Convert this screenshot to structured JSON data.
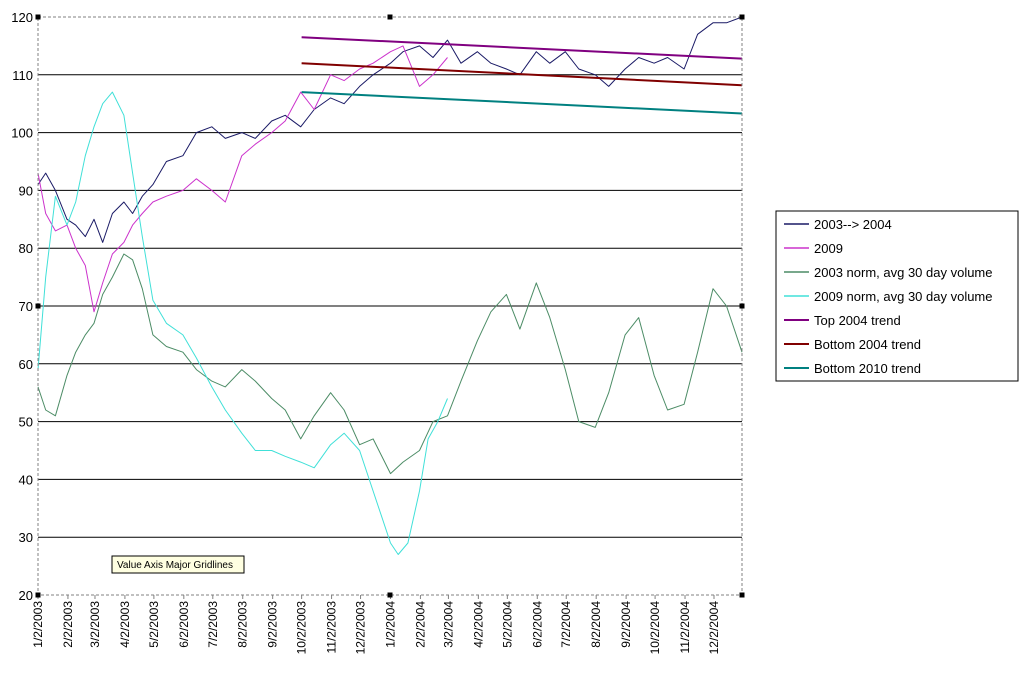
{
  "chart_data": {
    "type": "line",
    "title": "",
    "xlabel": "",
    "ylabel": "",
    "ylim": [
      20,
      120
    ],
    "xlim": [
      "2003-01-02",
      "2004-12-31"
    ],
    "y_ticks": [
      "20",
      "30",
      "40",
      "50",
      "60",
      "70",
      "80",
      "90",
      "100",
      "110",
      "120"
    ],
    "x_ticks": [
      "1/2/2003",
      "2/2/2003",
      "3/2/2003",
      "4/2/2003",
      "5/2/2003",
      "6/2/2003",
      "7/2/2003",
      "8/2/2003",
      "9/2/2003",
      "10/2/2003",
      "11/2/2003",
      "12/2/2003",
      "1/2/2004",
      "2/2/2004",
      "3/2/2004",
      "4/2/2004",
      "5/2/2004",
      "6/2/2004",
      "7/2/2004",
      "8/2/2004",
      "9/2/2004",
      "10/2/2004",
      "11/2/2004",
      "12/2/2004"
    ],
    "grid": "horizontal major gridlines",
    "legend_position": "right",
    "tooltip": "Value Axis Major Gridlines",
    "series": [
      {
        "name": "2003--> 2004",
        "color": "#1a1a66",
        "x": [
          "2003-01-02",
          "2003-01-10",
          "2003-01-20",
          "2003-02-01",
          "2003-02-10",
          "2003-02-20",
          "2003-03-01",
          "2003-03-10",
          "2003-03-20",
          "2003-04-01",
          "2003-04-10",
          "2003-04-20",
          "2003-05-01",
          "2003-05-15",
          "2003-06-01",
          "2003-06-15",
          "2003-07-01",
          "2003-07-15",
          "2003-08-01",
          "2003-08-15",
          "2003-09-01",
          "2003-09-15",
          "2003-10-01",
          "2003-10-15",
          "2003-11-01",
          "2003-11-15",
          "2003-12-01",
          "2003-12-15",
          "2004-01-02",
          "2004-01-15",
          "2004-02-01",
          "2004-02-15",
          "2004-03-01",
          "2004-03-15",
          "2004-04-01",
          "2004-04-15",
          "2004-05-01",
          "2004-05-15",
          "2004-06-01",
          "2004-06-15",
          "2004-07-01",
          "2004-07-15",
          "2004-08-01",
          "2004-08-15",
          "2004-09-01",
          "2004-09-15",
          "2004-10-01",
          "2004-10-15",
          "2004-11-01",
          "2004-11-15",
          "2004-12-01",
          "2004-12-15",
          "2004-12-31"
        ],
        "values": [
          91,
          93,
          90,
          85,
          84,
          82,
          85,
          81,
          86,
          88,
          86,
          89,
          91,
          95,
          96,
          100,
          101,
          99,
          100,
          99,
          102,
          103,
          101,
          104,
          106,
          105,
          108,
          110,
          112,
          114,
          115,
          113,
          116,
          112,
          114,
          112,
          111,
          110,
          114,
          112,
          114,
          111,
          110,
          108,
          111,
          113,
          112,
          113,
          111,
          117,
          119,
          119,
          120
        ]
      },
      {
        "name": "2009",
        "color": "#cc33cc",
        "x": [
          "2003-01-02",
          "2003-01-10",
          "2003-01-20",
          "2003-02-01",
          "2003-02-10",
          "2003-02-20",
          "2003-03-01",
          "2003-03-10",
          "2003-03-20",
          "2003-04-01",
          "2003-04-10",
          "2003-04-20",
          "2003-05-01",
          "2003-05-15",
          "2003-06-01",
          "2003-06-15",
          "2003-07-01",
          "2003-07-15",
          "2003-08-01",
          "2003-08-15",
          "2003-09-01",
          "2003-09-15",
          "2003-10-01",
          "2003-10-15",
          "2003-11-01",
          "2003-11-15",
          "2003-12-01",
          "2003-12-15",
          "2004-01-02",
          "2004-01-15",
          "2004-02-01",
          "2004-02-15",
          "2004-03-01"
        ],
        "values": [
          93,
          86,
          83,
          84,
          80,
          77,
          69,
          74,
          79,
          81,
          84,
          86,
          88,
          89,
          90,
          92,
          90,
          88,
          96,
          98,
          100,
          102,
          107,
          104,
          110,
          109,
          111,
          112,
          114,
          115,
          108,
          110,
          113
        ]
      },
      {
        "name": "2003 norm, avg 30 day volume",
        "color": "#4c8c66",
        "x": [
          "2003-01-02",
          "2003-01-10",
          "2003-01-20",
          "2003-02-01",
          "2003-02-10",
          "2003-02-20",
          "2003-03-01",
          "2003-03-10",
          "2003-03-20",
          "2003-04-01",
          "2003-04-10",
          "2003-04-20",
          "2003-05-01",
          "2003-05-15",
          "2003-06-01",
          "2003-06-15",
          "2003-07-01",
          "2003-07-15",
          "2003-08-01",
          "2003-08-15",
          "2003-09-01",
          "2003-09-15",
          "2003-10-01",
          "2003-10-15",
          "2003-11-01",
          "2003-11-15",
          "2003-12-01",
          "2003-12-15",
          "2004-01-02",
          "2004-01-15",
          "2004-02-01",
          "2004-02-15",
          "2004-03-01",
          "2004-03-15",
          "2004-04-01",
          "2004-04-15",
          "2004-05-01",
          "2004-05-15",
          "2004-06-01",
          "2004-06-15",
          "2004-07-01",
          "2004-07-15",
          "2004-08-01",
          "2004-08-15",
          "2004-09-01",
          "2004-09-15",
          "2004-10-01",
          "2004-10-15",
          "2004-11-01",
          "2004-11-15",
          "2004-12-01",
          "2004-12-15",
          "2004-12-31"
        ],
        "values": [
          56,
          52,
          51,
          58,
          62,
          65,
          67,
          72,
          75,
          79,
          78,
          73,
          65,
          63,
          62,
          59,
          57,
          56,
          59,
          57,
          54,
          52,
          47,
          51,
          55,
          52,
          46,
          47,
          41,
          43,
          45,
          50,
          51,
          57,
          64,
          69,
          72,
          66,
          74,
          68,
          59,
          50,
          49,
          55,
          65,
          68,
          58,
          52,
          53,
          62,
          73,
          70,
          62
        ]
      },
      {
        "name": "2009 norm, avg 30 day volume",
        "color": "#40e0d8",
        "x": [
          "2003-01-02",
          "2003-01-10",
          "2003-01-20",
          "2003-02-01",
          "2003-02-10",
          "2003-02-20",
          "2003-03-01",
          "2003-03-10",
          "2003-03-20",
          "2003-04-01",
          "2003-04-10",
          "2003-04-20",
          "2003-05-01",
          "2003-05-15",
          "2003-06-01",
          "2003-06-15",
          "2003-07-01",
          "2003-07-15",
          "2003-08-01",
          "2003-08-15",
          "2003-09-01",
          "2003-09-15",
          "2003-10-01",
          "2003-10-15",
          "2003-11-01",
          "2003-11-15",
          "2003-12-01",
          "2003-12-15",
          "2004-01-02",
          "2004-01-10",
          "2004-01-20",
          "2004-02-01",
          "2004-02-10",
          "2004-02-20",
          "2004-03-01"
        ],
        "values": [
          59,
          75,
          89,
          84,
          88,
          96,
          101,
          105,
          107,
          103,
          93,
          82,
          71,
          67,
          65,
          61,
          56,
          52,
          48,
          45,
          45,
          44,
          43,
          42,
          46,
          48,
          45,
          38,
          29,
          27,
          29,
          38,
          47,
          50,
          54
        ]
      },
      {
        "name": "Top 2004 trend",
        "color": "#800080",
        "x": [
          "2003-10-02",
          "2004-12-31"
        ],
        "values": [
          116.5,
          112.8
        ]
      },
      {
        "name": "Bottom 2004 trend",
        "color": "#800000",
        "x": [
          "2003-10-02",
          "2004-12-31"
        ],
        "values": [
          112,
          108.2
        ]
      },
      {
        "name": "Bottom 2010 trend",
        "color": "#008080",
        "x": [
          "2003-10-02",
          "2004-12-31"
        ],
        "values": [
          107,
          103.3
        ]
      }
    ]
  }
}
